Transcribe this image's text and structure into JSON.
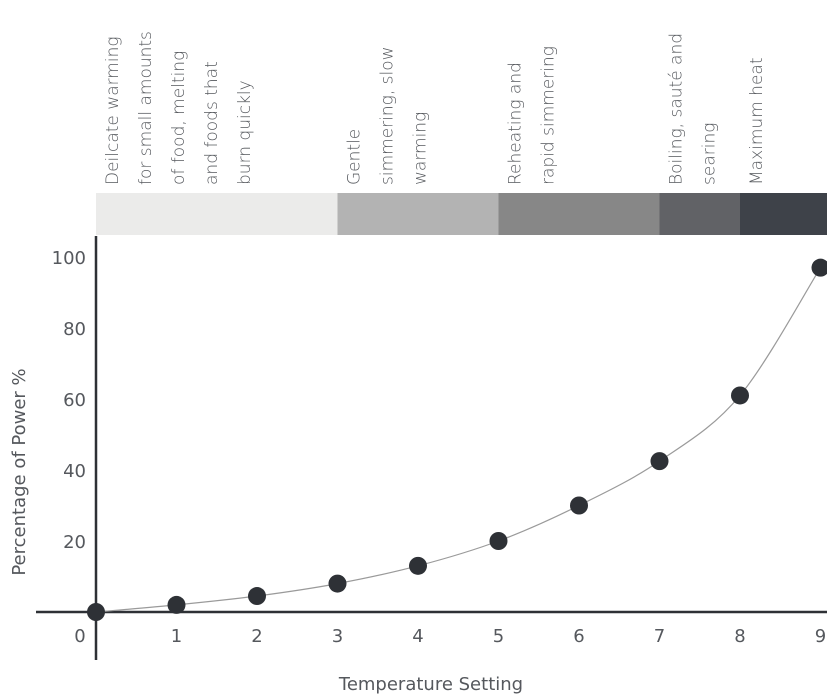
{
  "chart_data": {
    "type": "scatter",
    "title": "",
    "xlabel": "Temperature Setting",
    "ylabel": "Percentage of Power %",
    "xlim": [
      0,
      9
    ],
    "ylim": [
      0,
      100
    ],
    "x_ticks": [
      "0",
      "1",
      "2",
      "3",
      "4",
      "5",
      "6",
      "7",
      "8",
      "9"
    ],
    "y_ticks": [
      "20",
      "40",
      "60",
      "80",
      "100"
    ],
    "grid": false,
    "trendline": "smooth curve through points",
    "x": [
      0,
      1,
      2,
      3,
      4,
      5,
      6,
      7,
      8,
      9
    ],
    "y": [
      0,
      2,
      4.5,
      8,
      13,
      20,
      30,
      42.5,
      61,
      97
    ],
    "marker_color": "#2e3136",
    "line_color": "#9a9a9a",
    "bands": [
      {
        "x_start": 0,
        "x_end": 3.0,
        "color": "#ebebea",
        "lines": [
          "Deilcate warming",
          "for small amounts",
          "of food, melting",
          "and foods that",
          "burn quickly"
        ]
      },
      {
        "x_start": 3.0,
        "x_end": 5.0,
        "color": "#b3b3b3",
        "lines": [
          "Gentle",
          "simmering, slow",
          "warming"
        ]
      },
      {
        "x_start": 5.0,
        "x_end": 7.0,
        "color": "#878787",
        "lines": [
          "Reheating and",
          "rapid simmering"
        ]
      },
      {
        "x_start": 7.0,
        "x_end": 8.0,
        "color": "#616266",
        "lines": [
          "Boiling, sauté and",
          "searing"
        ]
      },
      {
        "x_start": 8.0,
        "x_end": 9.0,
        "color": "#3e4249",
        "lines": [
          "Maximum heat"
        ]
      }
    ]
  }
}
